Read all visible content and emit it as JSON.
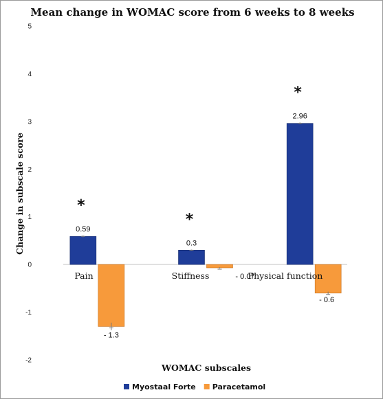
{
  "chart_data": {
    "type": "bar",
    "title": "Mean change in WOMAC score from 6 weeks  to 8 weeks",
    "xlabel": "WOMAC  subscales",
    "ylabel": "Change in subscale score",
    "categories": [
      "Pain",
      "Stiffness",
      "Physical function"
    ],
    "series": [
      {
        "name": "Myostaal Forte",
        "color": "#1f3d99",
        "values": [
          0.59,
          0.3,
          2.96
        ],
        "labels": [
          "0.59",
          "0.3",
          "2.96"
        ],
        "error": [
          0.02,
          0.01,
          0.02
        ]
      },
      {
        "name": "Paracetamol",
        "color": "#f79a3b",
        "values": [
          -1.3,
          -0.07,
          -0.6
        ],
        "labels": [
          "- 1.3",
          "- 0.07",
          "- 0.6"
        ],
        "error": [
          0.08,
          0.01,
          0.03
        ]
      }
    ],
    "significance": [
      "*",
      "*",
      "*"
    ],
    "ylim": [
      -2,
      5
    ],
    "yticks": [
      -2,
      -1,
      0,
      1,
      2,
      3,
      4,
      5
    ],
    "grid": false,
    "legend_position": "bottom"
  }
}
